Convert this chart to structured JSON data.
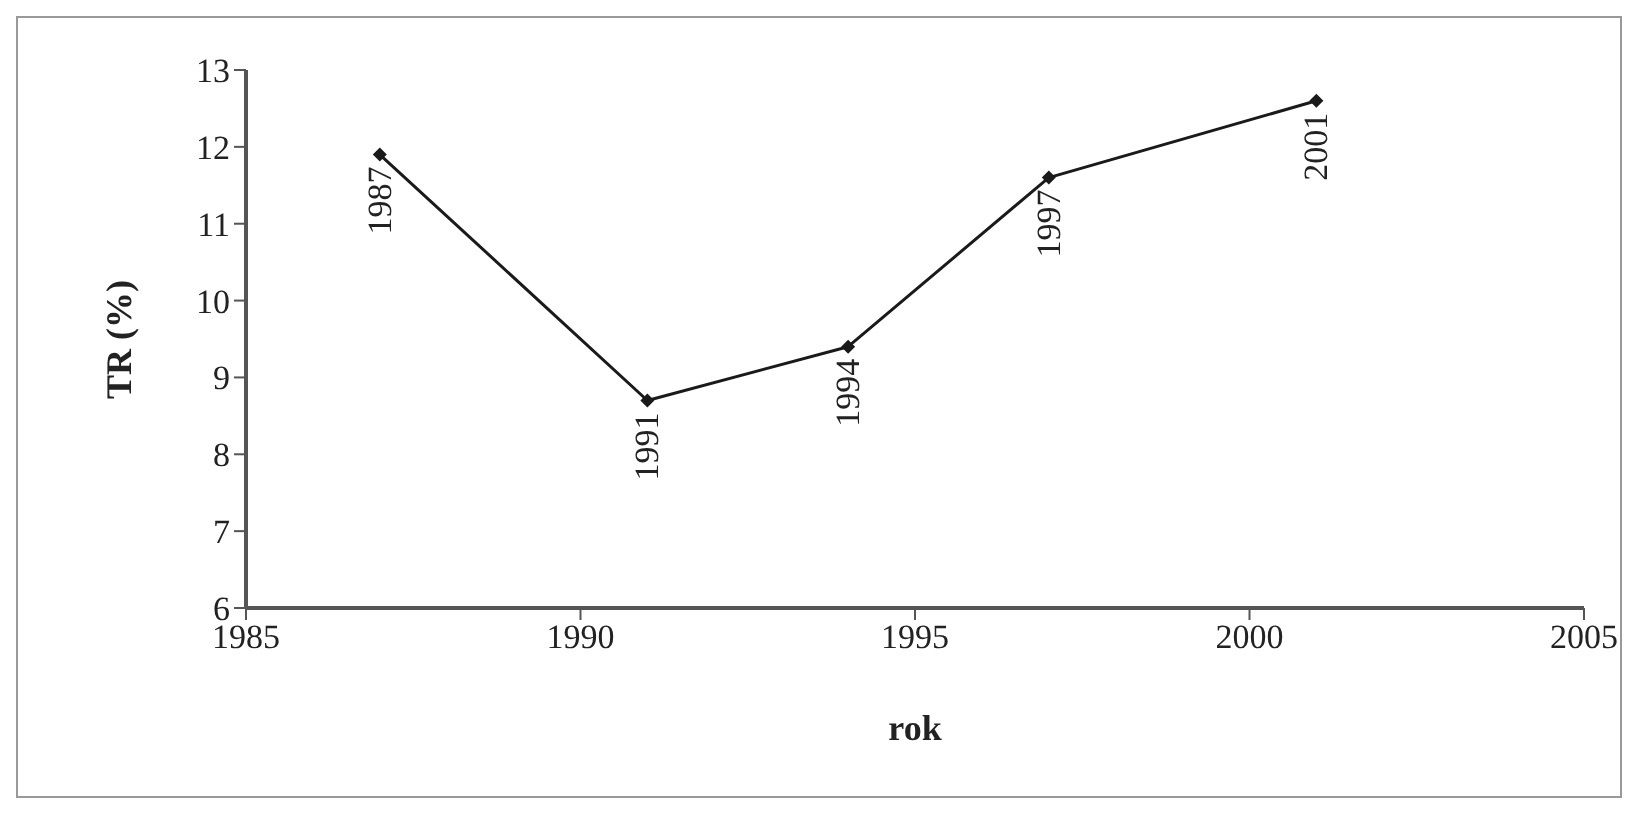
{
  "chart_data": {
    "type": "line",
    "xlabel": "rok",
    "ylabel": "TR (%)",
    "x": [
      1987,
      1991,
      1994,
      1997,
      2001
    ],
    "series": [
      {
        "color": "#1a1a1a",
        "values": [
          11.9,
          8.7,
          9.4,
          11.6,
          12.6
        ]
      }
    ],
    "annotations": [
      {
        "text": "1987",
        "x": 1987,
        "y": 11.9
      },
      {
        "text": "1991",
        "x": 1991,
        "y": 8.7
      },
      {
        "text": "1994",
        "x": 1994,
        "y": 9.4
      },
      {
        "text": "1997",
        "x": 1997,
        "y": 11.6
      },
      {
        "text": "2001",
        "x": 2001,
        "y": 12.6
      }
    ],
    "xlim": [
      1985,
      2005
    ],
    "xticks": [
      1985,
      1990,
      1995,
      2000,
      2005
    ],
    "ylim": [
      6,
      13
    ],
    "yticks": [
      6,
      7,
      8,
      9,
      10,
      11,
      12,
      13
    ],
    "grid": false,
    "legend": false,
    "marker": "diamond",
    "line_style": "solid"
  }
}
